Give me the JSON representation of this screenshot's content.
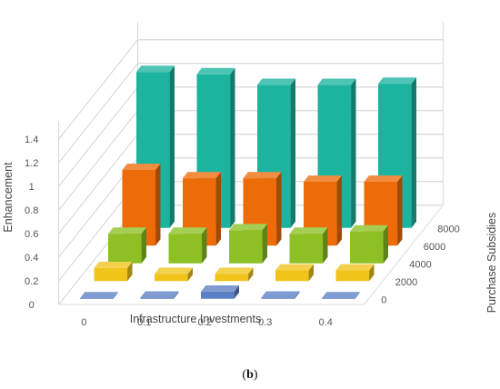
{
  "chart_data": {
    "type": "bar",
    "subtype": "3d-column",
    "caption": "b",
    "xlabel": "Infrastructure Investments",
    "ylabel": "Enhancement",
    "zlabel": "Purchase Subsidies",
    "x_categories": [
      "0",
      "0.1",
      "0.2",
      "0.3",
      "0.4"
    ],
    "z_categories": [
      "0",
      "2000",
      "4000",
      "6000",
      "8000"
    ],
    "ylim": [
      0,
      1.4
    ],
    "y_ticks": [
      "0",
      "0.2",
      "0.4",
      "0.6",
      "0.8",
      "1",
      "1.2",
      "1.4"
    ],
    "grid": true,
    "series": [
      {
        "name": "0",
        "color": "#5b7fc4",
        "values": [
          0.005,
          0.01,
          0.06,
          0.01,
          0.005
        ]
      },
      {
        "name": "2000",
        "color": "#f0c419",
        "values": [
          0.11,
          0.06,
          0.06,
          0.09,
          0.09
        ]
      },
      {
        "name": "4000",
        "color": "#8cc025",
        "values": [
          0.25,
          0.25,
          0.28,
          0.25,
          0.27
        ]
      },
      {
        "name": "6000",
        "color": "#ee6b0a",
        "values": [
          0.64,
          0.57,
          0.57,
          0.54,
          0.54
        ]
      },
      {
        "name": "8000",
        "color": "#1cb39f",
        "values": [
          1.32,
          1.3,
          1.21,
          1.21,
          1.22
        ]
      }
    ]
  }
}
